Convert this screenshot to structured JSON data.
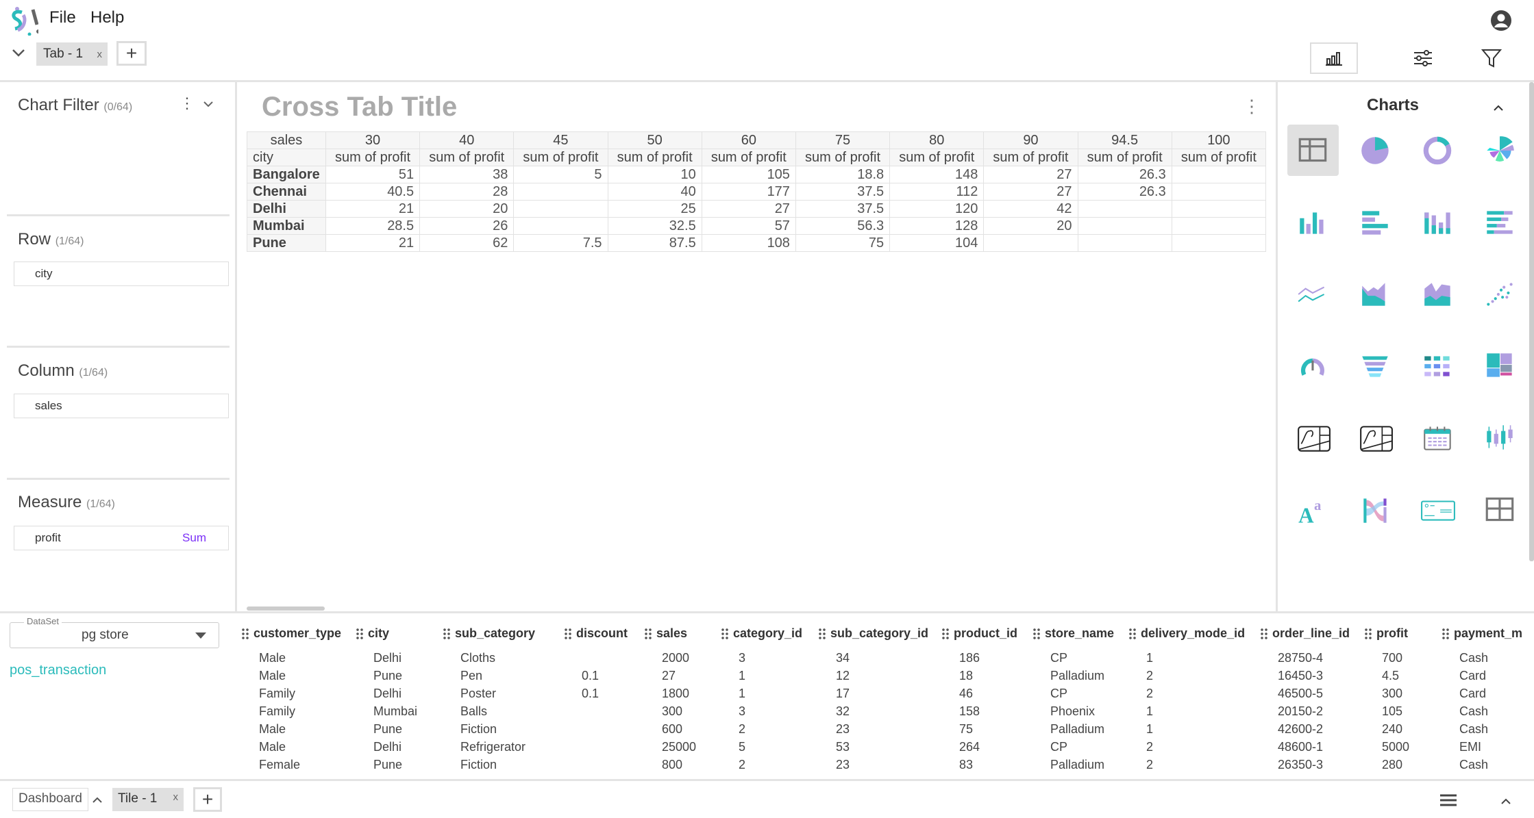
{
  "menu": {
    "file": "File",
    "help": "Help"
  },
  "tabs": [
    {
      "label": "Tab - 1",
      "close": "x"
    }
  ],
  "left": {
    "chart_filter": {
      "title": "Chart Filter",
      "count": "(0/64)"
    },
    "row": {
      "title": "Row",
      "count": "(1/64)",
      "field": "city"
    },
    "column": {
      "title": "Column",
      "count": "(1/64)",
      "field": "sales"
    },
    "measure": {
      "title": "Measure",
      "count": "(1/64)",
      "field": "profit",
      "agg": "Sum"
    }
  },
  "crosstab": {
    "title": "Cross Tab Title",
    "col_field": "sales",
    "row_field": "city",
    "columns": [
      "30",
      "40",
      "45",
      "50",
      "60",
      "75",
      "80",
      "90",
      "94.5",
      "100"
    ],
    "measure_label": "sum of profit",
    "rows": [
      {
        "city": "Bangalore",
        "values": [
          "51",
          "38",
          "5",
          "10",
          "105",
          "18.8",
          "148",
          "27",
          "26.3",
          ""
        ]
      },
      {
        "city": "Chennai",
        "values": [
          "40.5",
          "28",
          "",
          "40",
          "177",
          "37.5",
          "112",
          "27",
          "26.3",
          ""
        ]
      },
      {
        "city": "Delhi",
        "values": [
          "21",
          "20",
          "",
          "25",
          "27",
          "37.5",
          "120",
          "42",
          "",
          ""
        ]
      },
      {
        "city": "Mumbai",
        "values": [
          "28.5",
          "26",
          "",
          "32.5",
          "57",
          "56.3",
          "128",
          "20",
          "",
          ""
        ]
      },
      {
        "city": "Pune",
        "values": [
          "21",
          "62",
          "7.5",
          "87.5",
          "108",
          "75",
          "104",
          "",
          "",
          ""
        ]
      }
    ]
  },
  "charts_panel": {
    "title": "Charts",
    "icons": [
      "crosstab",
      "pie",
      "donut",
      "rose",
      "bar",
      "horizontal-bar",
      "stacked-bar",
      "stacked-horizontal-bar",
      "line",
      "area",
      "stacked-area",
      "scatter",
      "gauge",
      "funnel",
      "heatmap",
      "treemap",
      "geo-map",
      "geo-map-2",
      "calendar",
      "boxplot",
      "rich-text",
      "sankey",
      "simple-card",
      "table"
    ]
  },
  "dataset": {
    "label": "DataSet",
    "value": "pg store",
    "table": "pos_transaction"
  },
  "data_table": {
    "columns": [
      "customer_type",
      "city",
      "sub_category",
      "discount",
      "sales",
      "category_id",
      "sub_category_id",
      "product_id",
      "store_name",
      "delivery_mode_id",
      "order_line_id",
      "profit",
      "payment_m"
    ],
    "rows": [
      [
        "Male",
        "Delhi",
        "Cloths",
        "",
        "2000",
        "3",
        "34",
        "186",
        "CP",
        "1",
        "28750-4",
        "700",
        "Cash"
      ],
      [
        "Male",
        "Pune",
        "Pen",
        "0.1",
        "27",
        "1",
        "12",
        "18",
        "Palladium",
        "2",
        "16450-3",
        "4.5",
        "Card"
      ],
      [
        "Family",
        "Delhi",
        "Poster",
        "0.1",
        "1800",
        "1",
        "17",
        "46",
        "CP",
        "2",
        "46500-5",
        "300",
        "Card"
      ],
      [
        "Family",
        "Mumbai",
        "Balls",
        "",
        "300",
        "3",
        "32",
        "158",
        "Phoenix",
        "1",
        "20150-2",
        "105",
        "Cash"
      ],
      [
        "Male",
        "Pune",
        "Fiction",
        "",
        "600",
        "2",
        "23",
        "75",
        "Palladium",
        "1",
        "42600-2",
        "240",
        "Cash"
      ],
      [
        "Male",
        "Delhi",
        "Refrigerator",
        "",
        "25000",
        "5",
        "53",
        "264",
        "CP",
        "2",
        "48600-1",
        "5000",
        "EMI"
      ],
      [
        "Female",
        "Pune",
        "Fiction",
        "",
        "800",
        "2",
        "23",
        "83",
        "Palladium",
        "2",
        "26350-3",
        "280",
        "Cash"
      ]
    ]
  },
  "footer": {
    "dashboard": "Dashboard",
    "tile": "Tile - 1",
    "close": "x"
  },
  "colors": {
    "teal": "#2bbbbb",
    "lavender": "#b09ee0",
    "accent_text": "#7b2ff7"
  }
}
